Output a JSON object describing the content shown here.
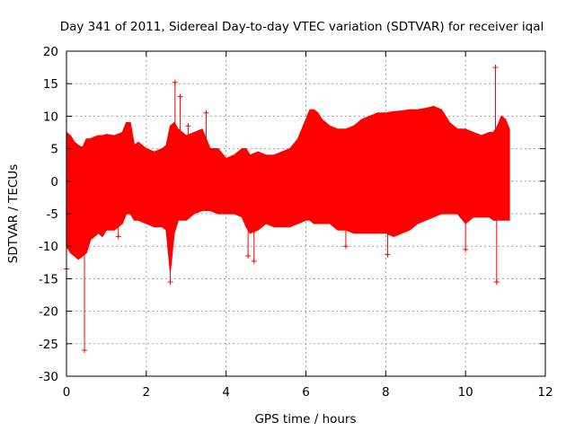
{
  "chart_data": {
    "type": "line",
    "title": "Day 341 of 2011, Sidereal Day-to-day VTEC variation (SDTVAR) for receiver iqal",
    "xlabel": "GPS time / hours",
    "ylabel": "SDTVAR / TECUs",
    "xlim": [
      0,
      12
    ],
    "ylim": [
      -30,
      20
    ],
    "x_ticks": [
      0,
      2,
      4,
      6,
      8,
      10,
      12
    ],
    "y_ticks": [
      -30,
      -25,
      -20,
      -15,
      -10,
      -5,
      0,
      5,
      10,
      15,
      20
    ],
    "grid": true,
    "series_color": "#ff0000",
    "series": [
      {
        "name": "SDTVAR",
        "envelope": {
          "x": [
            0.0,
            0.1,
            0.2,
            0.3,
            0.4,
            0.5,
            0.6,
            0.7,
            0.8,
            0.9,
            1.0,
            1.2,
            1.4,
            1.5,
            1.6,
            1.7,
            1.8,
            2.0,
            2.2,
            2.4,
            2.5,
            2.6,
            2.7,
            2.8,
            3.0,
            3.2,
            3.4,
            3.5,
            3.6,
            3.8,
            4.0,
            4.2,
            4.4,
            4.5,
            4.6,
            4.8,
            5.0,
            5.2,
            5.4,
            5.6,
            5.8,
            6.0,
            6.1,
            6.2,
            6.3,
            6.4,
            6.6,
            6.8,
            7.0,
            7.2,
            7.4,
            7.6,
            7.8,
            8.0,
            8.2,
            8.4,
            8.6,
            8.8,
            9.0,
            9.2,
            9.4,
            9.6,
            9.8,
            10.0,
            10.2,
            10.4,
            10.6,
            10.7,
            10.8,
            10.9,
            11.0,
            11.1
          ],
          "upper": [
            7.5,
            7.0,
            6.0,
            5.5,
            5.2,
            6.5,
            6.5,
            6.8,
            7.0,
            7.0,
            7.2,
            7.0,
            7.5,
            9.0,
            9.0,
            5.5,
            6.0,
            5.0,
            4.5,
            5.0,
            5.5,
            8.5,
            9.0,
            8.0,
            7.0,
            7.5,
            8.0,
            6.5,
            5.0,
            5.0,
            3.5,
            4.0,
            5.0,
            5.0,
            4.0,
            4.5,
            4.0,
            4.0,
            4.5,
            5.0,
            6.5,
            9.5,
            11.0,
            11.0,
            10.5,
            9.5,
            8.5,
            8.0,
            8.0,
            8.5,
            9.5,
            10.0,
            10.5,
            10.5,
            10.7,
            10.8,
            11.0,
            11.0,
            11.2,
            11.5,
            11.0,
            9.0,
            8.0,
            8.0,
            7.5,
            7.0,
            7.5,
            7.5,
            8.5,
            10.0,
            9.5,
            8.0
          ],
          "lower": [
            -10.0,
            -11.0,
            -11.5,
            -12.0,
            -11.5,
            -11.0,
            -9.0,
            -8.5,
            -8.0,
            -8.5,
            -7.5,
            -7.5,
            -6.5,
            -5.0,
            -5.0,
            -6.0,
            -6.0,
            -6.5,
            -7.0,
            -7.0,
            -7.5,
            -14.0,
            -8.0,
            -6.0,
            -6.0,
            -5.0,
            -4.5,
            -4.5,
            -4.5,
            -5.0,
            -5.0,
            -5.0,
            -5.5,
            -7.0,
            -8.0,
            -7.5,
            -6.5,
            -7.0,
            -7.0,
            -7.0,
            -6.5,
            -6.0,
            -6.0,
            -6.5,
            -6.5,
            -6.5,
            -6.5,
            -7.5,
            -7.5,
            -8.0,
            -8.0,
            -8.0,
            -8.0,
            -8.0,
            -8.5,
            -8.0,
            -7.5,
            -6.5,
            -6.0,
            -5.5,
            -5.0,
            -5.0,
            -5.0,
            -6.5,
            -5.5,
            -5.5,
            -5.5,
            -6.0,
            -6.0,
            -6.0,
            -6.0,
            -6.0
          ]
        },
        "spikes": [
          {
            "x": 0.0,
            "y": -13.5
          },
          {
            "x": 0.45,
            "y": -26.0
          },
          {
            "x": 1.3,
            "y": -8.5
          },
          {
            "x": 2.6,
            "y": -15.5
          },
          {
            "x": 2.72,
            "y": 15.2
          },
          {
            "x": 2.85,
            "y": 13.0
          },
          {
            "x": 3.05,
            "y": 8.5
          },
          {
            "x": 3.5,
            "y": 10.5
          },
          {
            "x": 4.05,
            "y": 2.5
          },
          {
            "x": 4.55,
            "y": -11.5
          },
          {
            "x": 4.7,
            "y": -12.3
          },
          {
            "x": 7.0,
            "y": -10.0
          },
          {
            "x": 8.05,
            "y": -11.3
          },
          {
            "x": 10.0,
            "y": -10.5
          },
          {
            "x": 10.75,
            "y": 17.5
          },
          {
            "x": 10.78,
            "y": -15.5
          }
        ]
      }
    ]
  }
}
